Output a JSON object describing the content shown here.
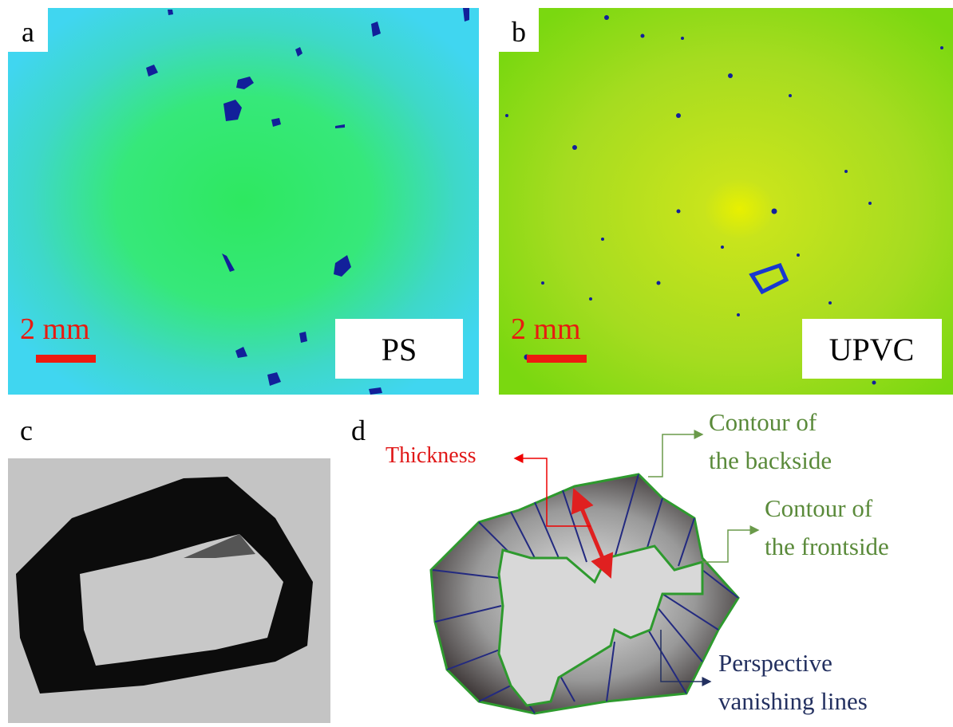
{
  "panels": [
    {
      "label": "a",
      "scale_bar": "2 mm",
      "material": "PS"
    },
    {
      "label": "b",
      "scale_bar": "2 mm",
      "material": "UPVC"
    },
    {
      "label": "c"
    },
    {
      "label": "d",
      "annotations": {
        "thickness": "Thickness",
        "backside": [
          "Contour of",
          "the backside"
        ],
        "frontside": [
          "Contour of",
          "the frontside"
        ],
        "vanishing": [
          "Perspective",
          "vanishing lines"
        ]
      }
    }
  ]
}
